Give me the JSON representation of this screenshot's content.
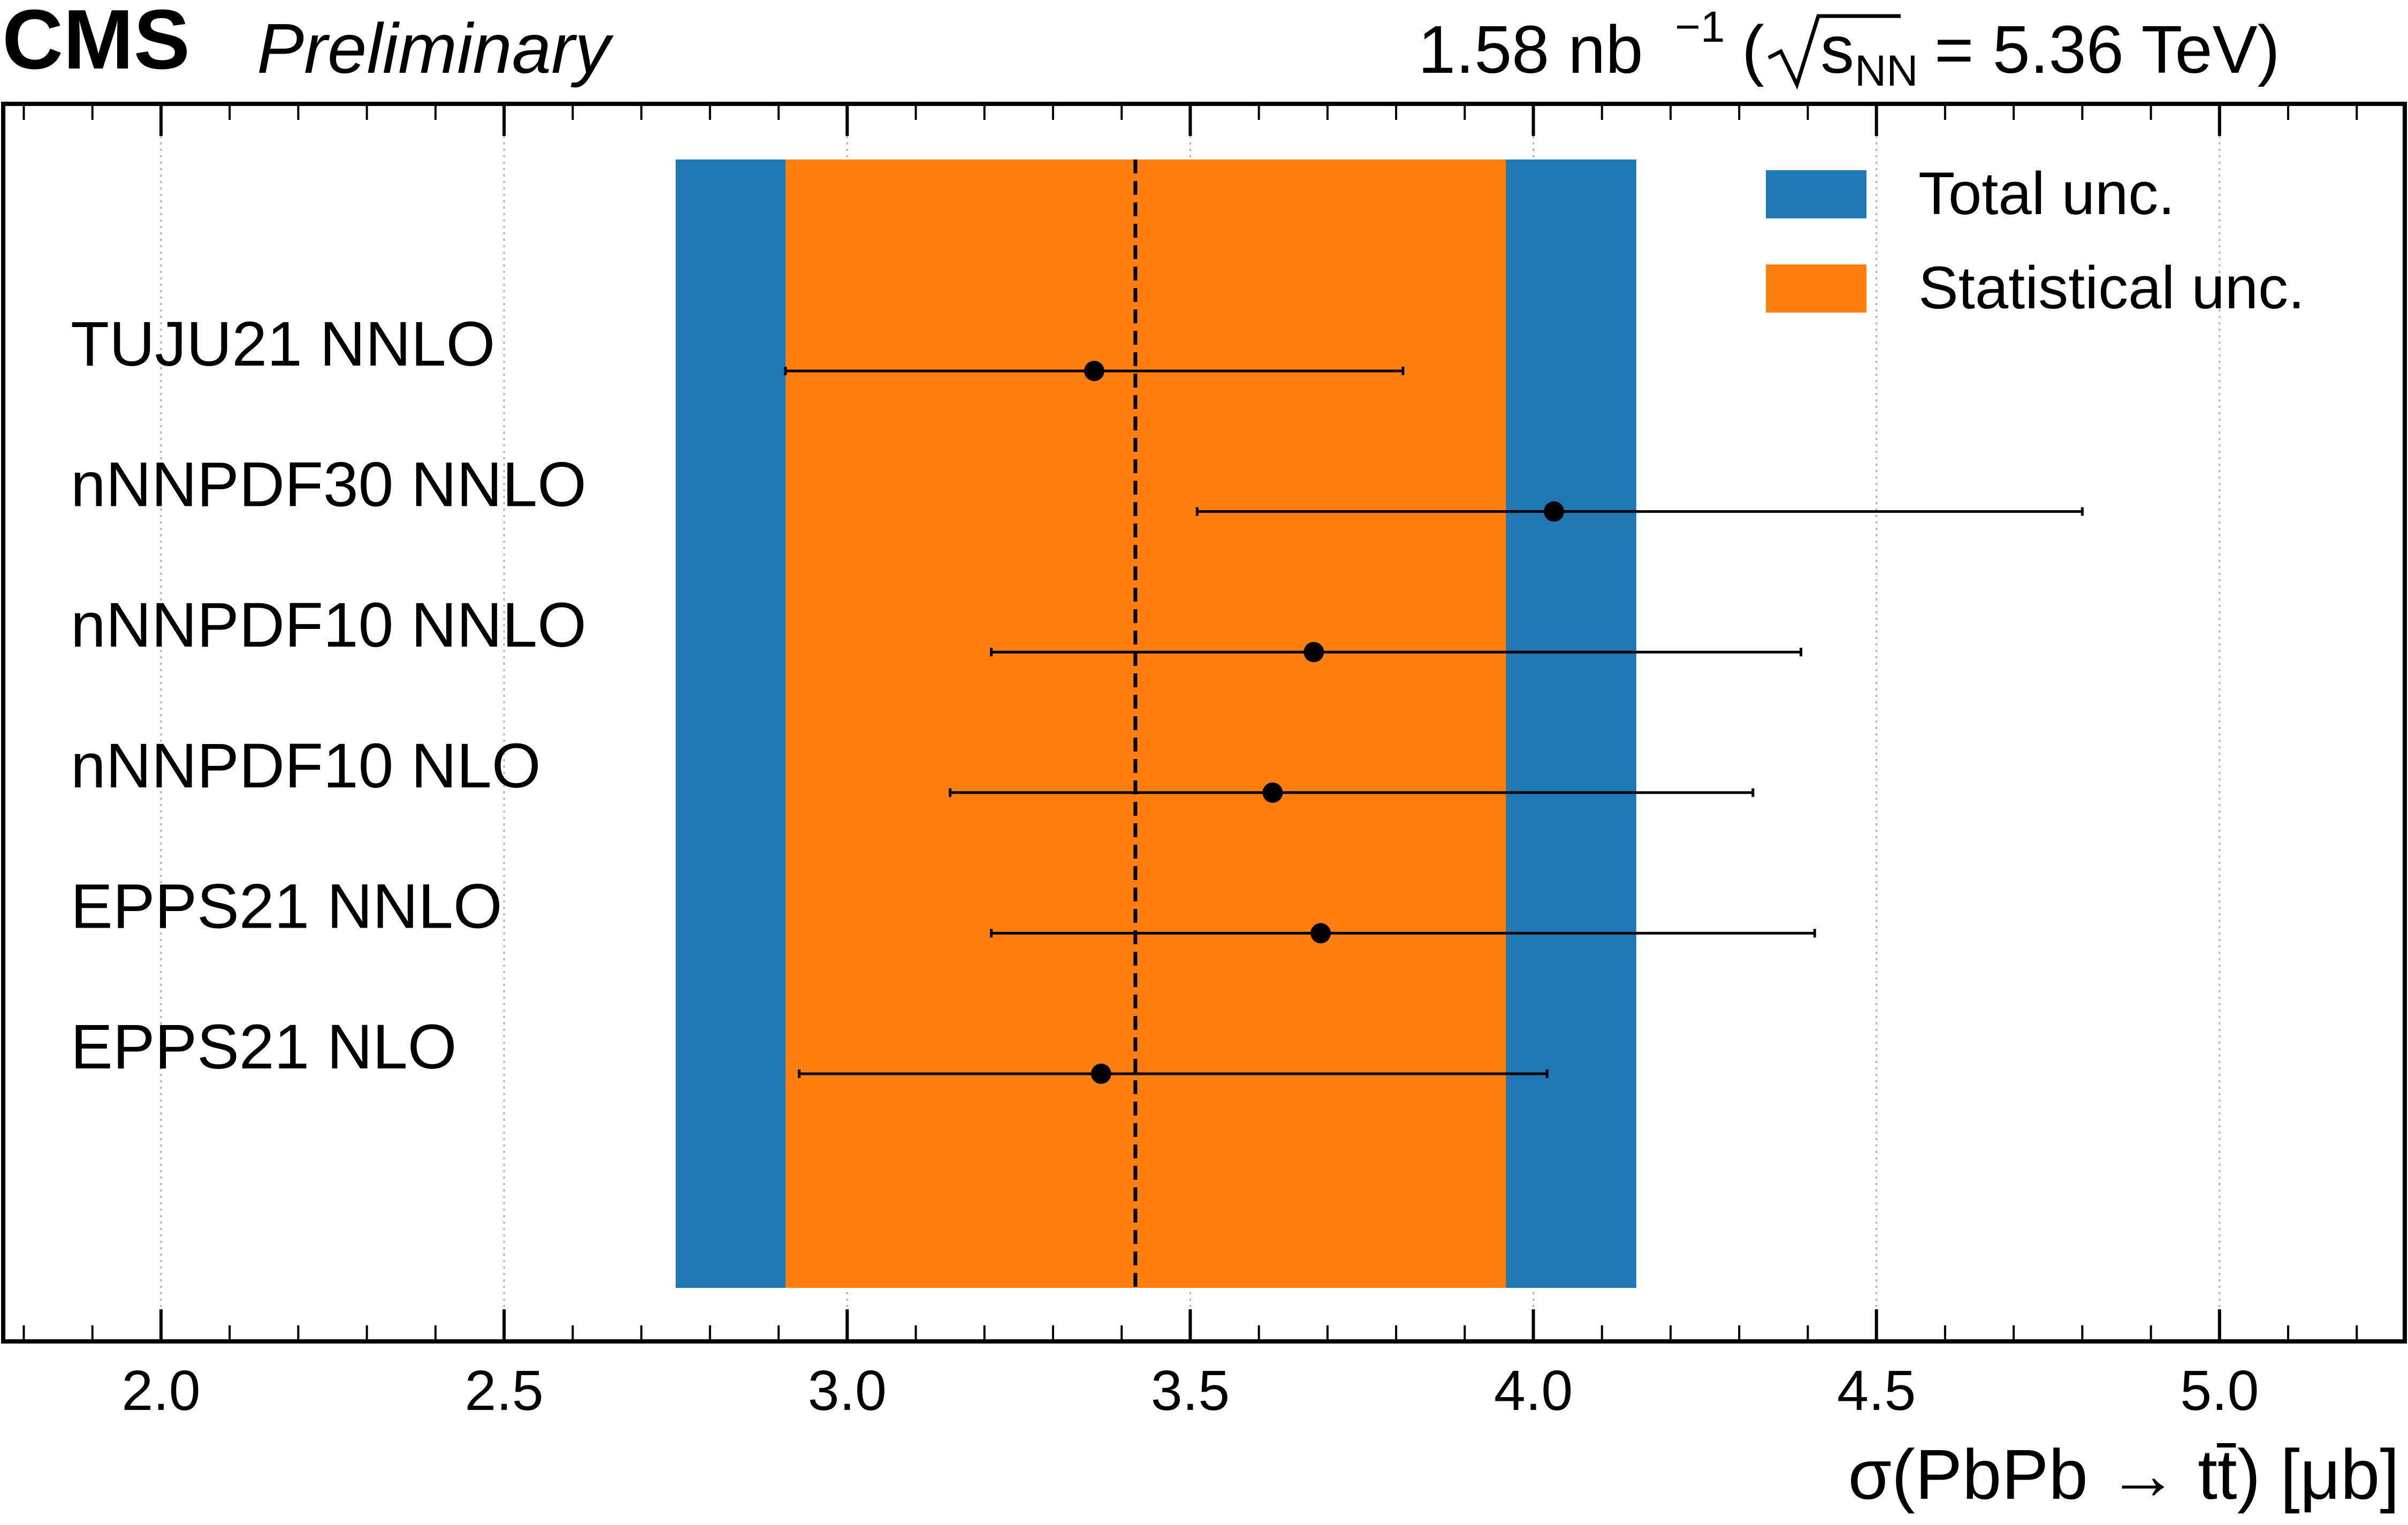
{
  "header": {
    "experiment": "CMS",
    "status": "Preliminary",
    "lumi_value": "1.58 nb",
    "lumi_exponent": "−1",
    "energy_symbol": "s",
    "energy_subscript": "NN",
    "energy_value": "= 5.36 TeV)"
  },
  "chart_data": {
    "type": "scatter",
    "orientation": "horizontal-errorbars",
    "xlabel": "σ(PbPb → tt̄) [μb]",
    "ylabel": "",
    "xlim": [
      1.77,
      5.27
    ],
    "x_ticks": [
      2.0,
      2.5,
      3.0,
      3.5,
      4.0,
      4.5,
      5.0
    ],
    "x_tick_labels": [
      "2.0",
      "2.5",
      "3.0",
      "3.5",
      "4.0",
      "4.5",
      "5.0"
    ],
    "grid": "vertical dotted at major ticks",
    "legend_position": "top-right",
    "measurement": {
      "central": 3.42,
      "total_band": [
        2.75,
        4.15
      ],
      "stat_band": [
        2.91,
        3.96
      ]
    },
    "bands": [
      {
        "name": "Total unc.",
        "color": "#1f77b4"
      },
      {
        "name": "Statistical unc.",
        "color": "#ff7f0e"
      }
    ],
    "predictions": [
      {
        "label": "TUJU21 NNLO",
        "value": 3.36,
        "low": 2.91,
        "high": 3.81
      },
      {
        "label": "nNNPDF30 NNLO",
        "value": 4.03,
        "low": 3.51,
        "high": 4.8
      },
      {
        "label": "nNNPDF10 NNLO",
        "value": 3.68,
        "low": 3.21,
        "high": 4.39
      },
      {
        "label": "nNNPDF10 NLO",
        "value": 3.62,
        "low": 3.15,
        "high": 4.32
      },
      {
        "label": "EPPS21 NNLO",
        "value": 3.69,
        "low": 3.21,
        "high": 4.41
      },
      {
        "label": "EPPS21 NLO",
        "value": 3.37,
        "low": 2.93,
        "high": 4.02
      }
    ]
  }
}
